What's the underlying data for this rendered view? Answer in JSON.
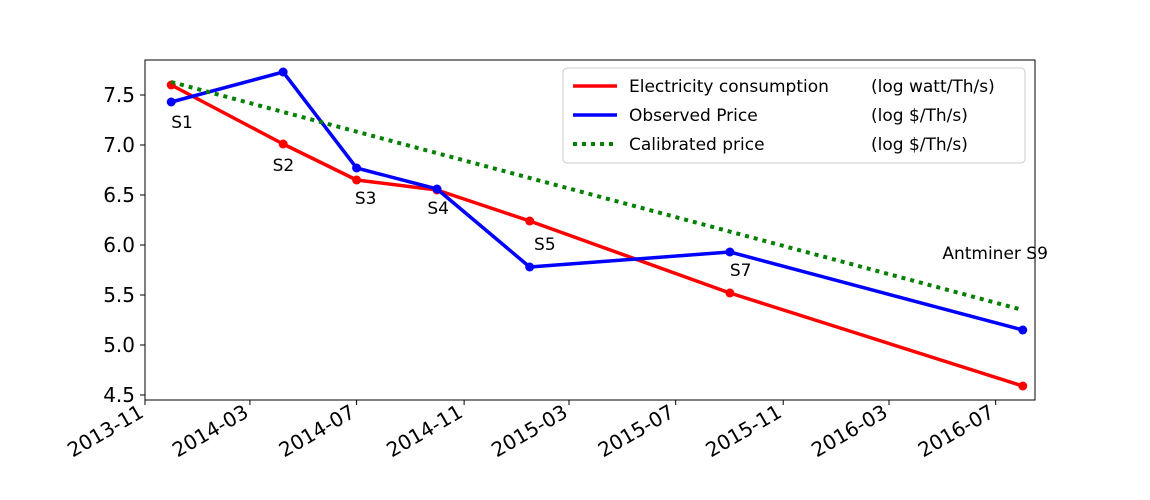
{
  "chart_data": {
    "type": "line",
    "title": "",
    "xlabel": "",
    "ylabel": "",
    "x_ticks": [
      "2013-11",
      "2014-03",
      "2014-07",
      "2014-11",
      "2015-03",
      "2015-07",
      "2015-11",
      "2016-03",
      "2016-07"
    ],
    "y_ticks": [
      "4.5",
      "5.0",
      "5.5",
      "6.0",
      "6.5",
      "7.0",
      "7.5"
    ],
    "xlim": [
      "2013-11-01",
      "2016-08-15"
    ],
    "ylim": [
      4.45,
      7.85
    ],
    "grid": false,
    "legend_position": "top-right",
    "series": [
      {
        "name": "Electricity consumption (log watt/Th/s)",
        "legend_label": "Electricity consumption",
        "legend_unit": "(log watt/Th/s)",
        "color": "#ff0000",
        "style": "solid",
        "markers": true,
        "points": [
          {
            "x": "2013-12-01",
            "y": 7.6
          },
          {
            "x": "2014-04-08",
            "y": 7.01
          },
          {
            "x": "2014-07-01",
            "y": 6.65
          },
          {
            "x": "2014-10-01",
            "y": 6.55
          },
          {
            "x": "2015-01-15",
            "y": 6.24
          },
          {
            "x": "2015-09-01",
            "y": 5.52
          },
          {
            "x": "2016-08-01",
            "y": 4.59
          }
        ]
      },
      {
        "name": "Observed Price (log $/Th/s)",
        "legend_label": "Observed Price",
        "legend_unit": "(log $/Th/s)",
        "color": "#0000ff",
        "style": "solid",
        "markers": true,
        "points": [
          {
            "x": "2013-12-01",
            "y": 7.43
          },
          {
            "x": "2014-04-08",
            "y": 7.73
          },
          {
            "x": "2014-07-01",
            "y": 6.77
          },
          {
            "x": "2014-10-01",
            "y": 6.56
          },
          {
            "x": "2015-01-15",
            "y": 5.78
          },
          {
            "x": "2015-09-01",
            "y": 5.93
          },
          {
            "x": "2016-08-01",
            "y": 5.15
          }
        ]
      },
      {
        "name": "Calibrated price (log $/Th/s)",
        "legend_label": "Calibrated price",
        "legend_unit": "(log $/Th/s)",
        "color": "#008000",
        "style": "dotted",
        "markers": false,
        "points": [
          {
            "x": "2013-12-01",
            "y": 7.63
          },
          {
            "x": "2016-08-01",
            "y": 5.35
          }
        ]
      }
    ],
    "annotations": [
      {
        "text": "S1",
        "x": "2013-12-01",
        "y": 7.17
      },
      {
        "text": "S2",
        "x": "2014-03-27",
        "y": 6.74
      },
      {
        "text": "S3",
        "x": "2014-06-29",
        "y": 6.41
      },
      {
        "text": "S4",
        "x": "2014-09-20",
        "y": 6.31
      },
      {
        "text": "S5",
        "x": "2015-01-20",
        "y": 5.95
      },
      {
        "text": "S7",
        "x": "2015-09-01",
        "y": 5.69
      },
      {
        "text": "Antminer S9",
        "x": "2016-05-01",
        "y": 5.86
      }
    ]
  }
}
